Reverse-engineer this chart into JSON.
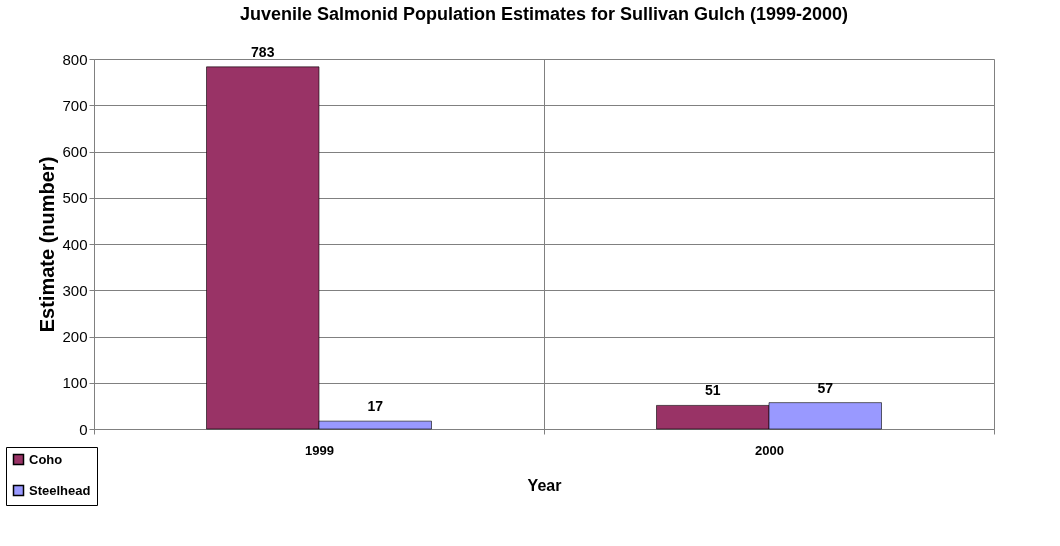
{
  "chart_data": {
    "type": "bar",
    "title": "Juvenile Salmonid Population Estimates for Sullivan Gulch (1999-2000)",
    "xlabel": "Year",
    "ylabel": "Estimate (number)",
    "categories": [
      "1999",
      "2000"
    ],
    "series": [
      {
        "name": "Coho",
        "color": "#993366",
        "values": [
          783,
          51
        ]
      },
      {
        "name": "Steelhead",
        "color": "#9999ff",
        "values": [
          17,
          57
        ]
      }
    ],
    "ylim": [
      0,
      800
    ],
    "yticks": [
      0,
      100,
      200,
      300,
      400,
      500,
      600,
      700,
      800
    ],
    "grid": true,
    "legend": "bottom left",
    "data_labels": true
  }
}
